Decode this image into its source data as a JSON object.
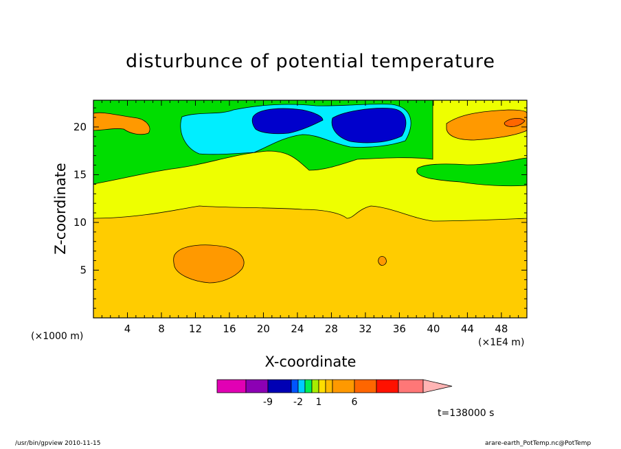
{
  "chart_data": {
    "type": "heatmap",
    "subtype": "filled-contour",
    "title": "disturbunce of potential temperature",
    "xlabel": "X-coordinate",
    "ylabel": "Z-coordinate",
    "x_unit_left": "(×1000 m)",
    "x_unit_right": "(×1E4 m)",
    "xlim": [
      0,
      51
    ],
    "ylim": [
      0,
      22.8
    ],
    "xticks": [
      4,
      8,
      12,
      16,
      20,
      24,
      28,
      32,
      36,
      40,
      44,
      48
    ],
    "yticks": [
      5,
      10,
      15,
      20
    ],
    "grid": false,
    "regions": [
      {
        "level": "warm-background",
        "color": "#ffcc00",
        "x": [
          0,
          51
        ],
        "y": [
          0,
          10.5
        ]
      },
      {
        "level": "yellow-band",
        "color": "#eeff00",
        "x": [
          0,
          51
        ],
        "y": [
          10.5,
          17
        ]
      },
      {
        "level": "green-band",
        "color": "#00dd00",
        "x": [
          0,
          51
        ],
        "y": [
          14.3,
          22.8
        ]
      },
      {
        "level": "orange-core",
        "color": "#ff9900",
        "center": [
          13.5,
          5.8
        ],
        "size": [
          8,
          4
        ]
      },
      {
        "level": "orange-upper-left",
        "color": "#ff9900",
        "center": [
          4.2,
          20.2
        ],
        "size": [
          6,
          2
        ]
      },
      {
        "level": "orange-upper-right",
        "color": "#ff9900",
        "center": [
          45.5,
          20.2
        ],
        "size": [
          9,
          3
        ]
      },
      {
        "level": "cold-cyan",
        "color": "#00eeff",
        "center": [
          26,
          19.8
        ],
        "size": [
          24,
          4.5
        ]
      },
      {
        "level": "cold-core-1",
        "color": "#0000cc",
        "center": [
          21.5,
          20.7
        ],
        "size": [
          6,
          2
        ]
      },
      {
        "level": "cold-core-2",
        "color": "#0000cc",
        "center": [
          31.5,
          20.4
        ],
        "size": [
          8,
          2.4
        ]
      }
    ],
    "colorbar": {
      "colors": [
        "#e100b4",
        "#8c00b4",
        "#0000b4",
        "#0055ff",
        "#00ccff",
        "#00ee55",
        "#a8ee00",
        "#ffdd00",
        "#ffbb00",
        "#ff9900",
        "#ff6600",
        "#ff1100",
        "#ff7777",
        "#ffb4b4"
      ],
      "labels": [
        "-9",
        "-2",
        "1",
        "6"
      ]
    }
  },
  "text": {
    "title": "disturbunce of potential temperature",
    "xlabel": "X-coordinate",
    "ylabel": "Z-coordinate",
    "x_unit_left": "(×1000 m)",
    "x_unit_right": "(×1E4 m)",
    "time": "t=138000 s",
    "footer_left": "/usr/bin/gpview   2010-11-15",
    "footer_right": "arare-earth_PotTemp.nc@PotTemp"
  }
}
